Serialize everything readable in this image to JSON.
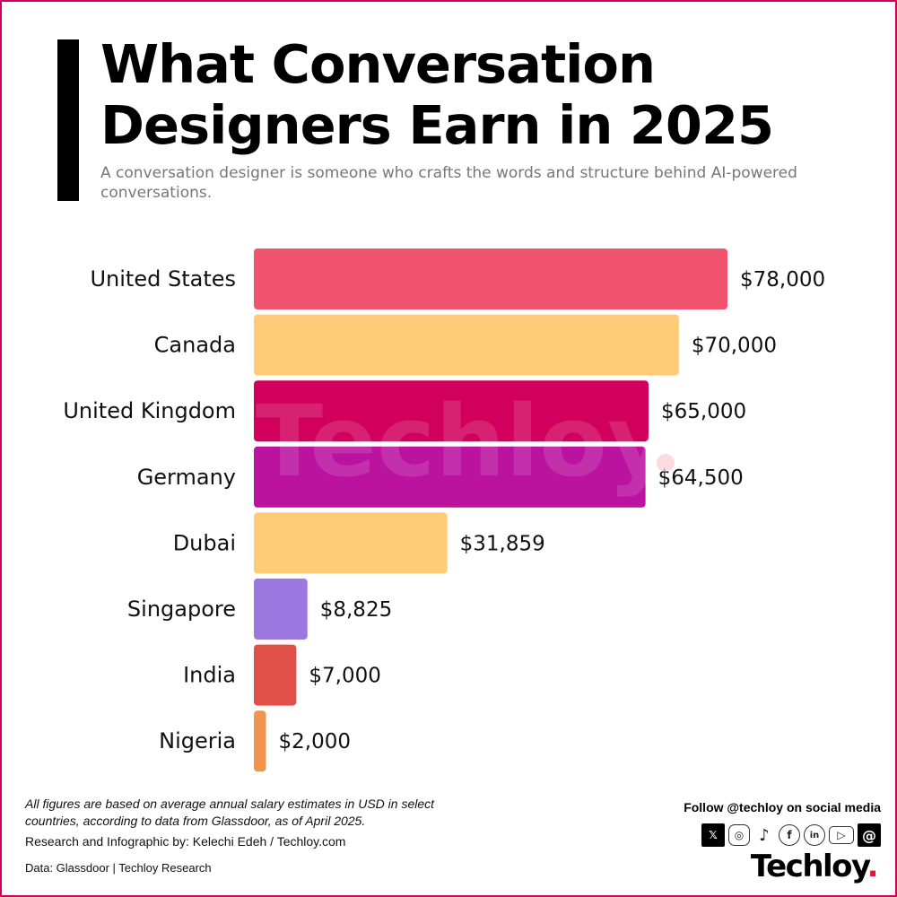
{
  "header": {
    "title_line1": "What Conversation",
    "title_line2": "Designers Earn in 2025",
    "subtitle": "A conversation designer is someone who crafts the words and structure behind AI-powered conversations."
  },
  "chart_data": {
    "type": "bar",
    "orientation": "horizontal",
    "categories": [
      "United States",
      "Canada",
      "United Kingdom",
      "Germany",
      "Dubai",
      "Singapore",
      "India",
      "Nigeria"
    ],
    "values": [
      78000,
      70000,
      65000,
      64500,
      31859,
      8825,
      7000,
      2000
    ],
    "data_labels": [
      "$78,000",
      "$70,000",
      "$65,000",
      "$64,500",
      "$31,859",
      "$8,825",
      "$7,000",
      "$2,000"
    ],
    "colors": [
      "#f0546e",
      "#fecb78",
      "#d1005c",
      "#bb12a0",
      "#fecb78",
      "#9b78e0",
      "#e05048",
      "#f29450"
    ],
    "xlim": [
      0,
      78000
    ],
    "grid": false,
    "watermark": "Techloy"
  },
  "footer": {
    "note": "All figures are based on average annual salary estimates in USD in select countries, according to data from Glassdoor, as of April 2025.",
    "credit": "Research and Infographic by: Kelechi Edeh / Techloy.com",
    "source": "Data: Glassdoor | Techloy Research",
    "follow": "Follow @techloy on social media",
    "social_icons": [
      "x-icon",
      "instagram-icon",
      "tiktok-icon",
      "facebook-icon",
      "linkedin-icon",
      "youtube-icon",
      "threads-icon"
    ],
    "brand": "Techloy",
    "brand_dot": "."
  }
}
